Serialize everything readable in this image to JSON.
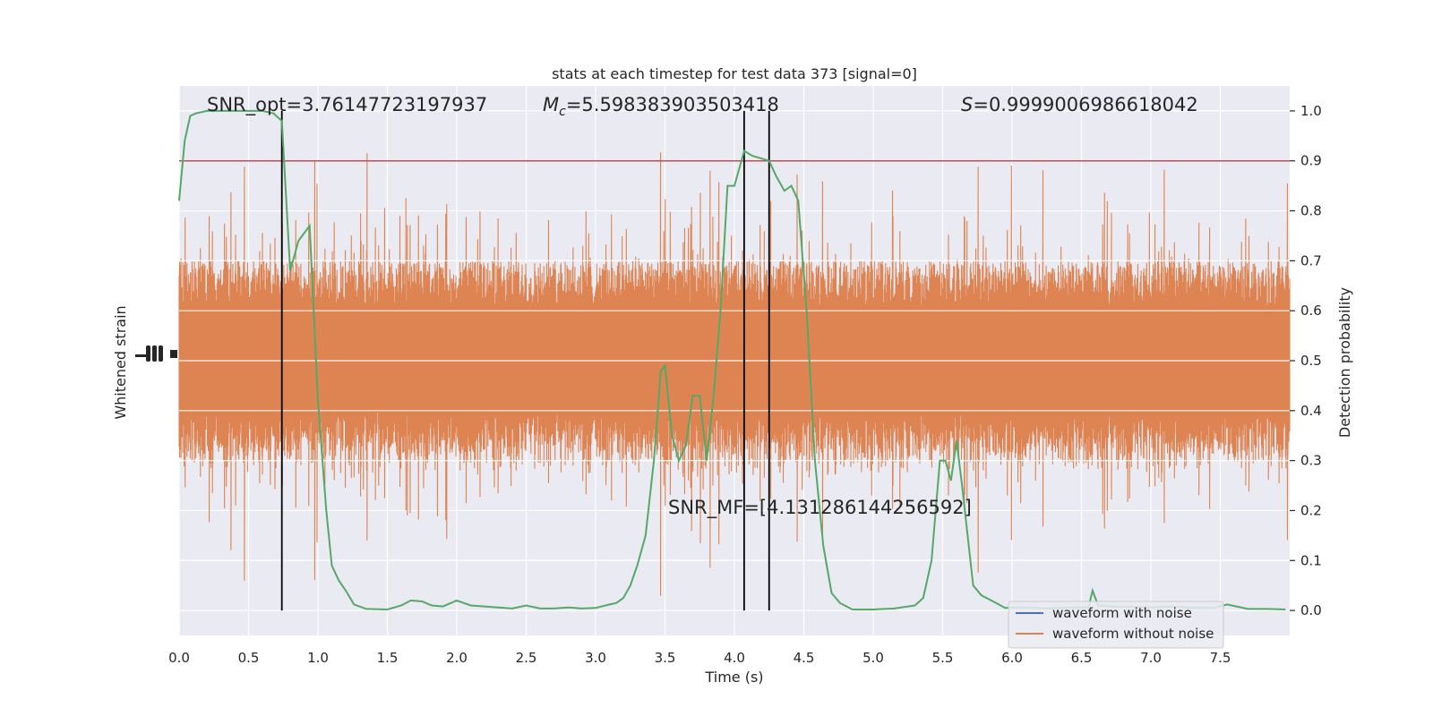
{
  "chart_data": {
    "type": "line",
    "title": "stats at each timestep for test data 373 [signal=0]",
    "xlabel": "Time (s)",
    "ylabel_left": "Whitened strain",
    "ylabel_right": "Detection probability",
    "xlim": [
      0,
      8.0
    ],
    "ylim_right": [
      -0.05,
      1.05
    ],
    "x_ticks": [
      "0.0",
      "0.5",
      "1.0",
      "1.5",
      "2.0",
      "2.5",
      "3.0",
      "3.5",
      "4.0",
      "4.5",
      "5.0",
      "5.5",
      "6.0",
      "6.5",
      "7.0",
      "7.5"
    ],
    "x_tick_values": [
      0,
      0.5,
      1.0,
      1.5,
      2.0,
      2.5,
      3.0,
      3.5,
      4.0,
      4.5,
      5.0,
      5.5,
      6.0,
      6.5,
      7.0,
      7.5
    ],
    "y_ticks_right": [
      "0.0",
      "0.1",
      "0.2",
      "0.3",
      "0.4",
      "0.5",
      "0.6",
      "0.7",
      "0.8",
      "0.9",
      "1.0"
    ],
    "y_tick_values_right": [
      0,
      0.1,
      0.2,
      0.3,
      0.4,
      0.5,
      0.6,
      0.7,
      0.8,
      0.9,
      1.0
    ],
    "grid": true,
    "legend_position": "bottom-right",
    "annotations": {
      "snr_opt": "SNR_opt=3.76147723197937",
      "mc_symbol": "M",
      "mc_sub": "c",
      "mc_value": "=5.598383903503418",
      "s_symbol": "S",
      "s_value": "=0.9999006986618042",
      "snr_mf": "SNR_MF=[4.131286144256592]"
    },
    "threshold": 0.9,
    "vertical_lines_x": [
      0.74,
      4.07,
      4.25
    ],
    "series": [
      {
        "name": "waveform with noise",
        "color": "#4c72b0",
        "values": []
      },
      {
        "name": "waveform without noise",
        "color": "#dd8452",
        "band_center": 0.5,
        "band_half_width": 0.2,
        "spike_max": 0.92,
        "spike_min": 0.0
      },
      {
        "name": "detection probability",
        "color": "#55a868",
        "x": [
          0.0,
          0.04,
          0.08,
          0.12,
          0.2,
          0.3,
          0.4,
          0.5,
          0.6,
          0.68,
          0.74,
          0.8,
          0.86,
          0.94,
          1.0,
          1.06,
          1.1,
          1.15,
          1.2,
          1.26,
          1.35,
          1.5,
          1.6,
          1.67,
          1.75,
          1.82,
          1.9,
          2.0,
          2.1,
          2.2,
          2.3,
          2.4,
          2.5,
          2.6,
          2.7,
          2.8,
          2.9,
          3.0,
          3.1,
          3.15,
          3.2,
          3.25,
          3.3,
          3.36,
          3.42,
          3.47,
          3.5,
          3.55,
          3.6,
          3.65,
          3.7,
          3.75,
          3.8,
          3.85,
          3.9,
          3.95,
          4.0,
          4.07,
          4.13,
          4.25,
          4.3,
          4.36,
          4.41,
          4.46,
          4.52,
          4.58,
          4.64,
          4.7,
          4.76,
          4.85,
          5.0,
          5.15,
          5.3,
          5.36,
          5.42,
          5.48,
          5.52,
          5.56,
          5.6,
          5.64,
          5.68,
          5.72,
          5.78,
          5.85,
          5.95,
          6.1,
          6.25,
          6.4,
          6.55,
          6.58,
          6.62,
          6.7,
          6.85,
          7.0,
          7.15,
          7.3,
          7.45,
          7.55,
          7.7,
          7.85,
          7.97
        ],
        "values": [
          0.82,
          0.94,
          0.99,
          0.995,
          1.0,
          1.0,
          1.0,
          1.0,
          1.0,
          0.995,
          0.98,
          0.68,
          0.74,
          0.77,
          0.42,
          0.2,
          0.09,
          0.06,
          0.04,
          0.012,
          0.003,
          0.002,
          0.01,
          0.02,
          0.018,
          0.01,
          0.008,
          0.02,
          0.01,
          0.008,
          0.006,
          0.004,
          0.01,
          0.004,
          0.004,
          0.006,
          0.004,
          0.005,
          0.012,
          0.015,
          0.025,
          0.05,
          0.09,
          0.15,
          0.3,
          0.48,
          0.49,
          0.35,
          0.3,
          0.33,
          0.43,
          0.43,
          0.3,
          0.43,
          0.6,
          0.85,
          0.85,
          0.92,
          0.91,
          0.9,
          0.87,
          0.84,
          0.85,
          0.82,
          0.6,
          0.3,
          0.13,
          0.035,
          0.015,
          0.002,
          0.002,
          0.004,
          0.01,
          0.025,
          0.1,
          0.3,
          0.3,
          0.26,
          0.34,
          0.25,
          0.15,
          0.05,
          0.03,
          0.02,
          0.005,
          0.006,
          0.004,
          0.006,
          0.006,
          0.04,
          0.01,
          0.008,
          0.007,
          0.006,
          0.008,
          0.005,
          0.005,
          0.012,
          0.003,
          0.003,
          0.002
        ]
      }
    ]
  }
}
